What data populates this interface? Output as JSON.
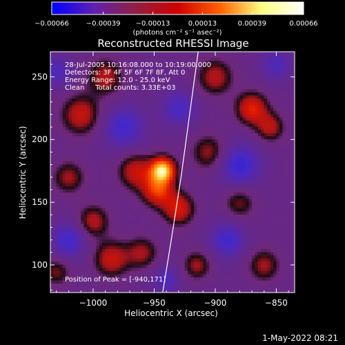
{
  "chart_data": {
    "type": "heatmap",
    "title": "Reconstructed RHESSI Image",
    "xlabel": "Heliocentric X (arcsec)",
    "ylabel": "Heliocentric Y (arcsec)",
    "xlim": [
      -1035,
      -835
    ],
    "ylim": [
      78,
      270
    ],
    "x_ticks": [
      -1000,
      -950,
      -900,
      -850
    ],
    "x_tick_labels": [
      "−1000",
      "−950",
      "−900",
      "−850"
    ],
    "y_ticks": [
      100,
      150,
      200,
      250
    ],
    "y_tick_labels": [
      "100",
      "150",
      "200",
      "250"
    ],
    "colorbar": {
      "range": [
        -0.00066,
        0.00066
      ],
      "ticks": [
        -0.00066,
        -0.00039,
        -0.00013,
        0.00013,
        0.00039,
        0.00066
      ],
      "tick_labels": [
        "−0.00066",
        "−0.00039",
        "−0.00013",
        "0.00013",
        "0.00039",
        "0.00066"
      ],
      "units": "(photons cm⁻² s⁻¹ asec⁻²)",
      "colors": [
        "#0000ff",
        "#6020b0",
        "#902040",
        "#d00000",
        "#ff6000",
        "#ffff80",
        "#ffffff"
      ]
    },
    "annotations": [
      "28-Jul-2005 10:16:08.000 to 10:19:00.000",
      "Detectors: 3F 4F 5F 6F 7F 8F, Att 0",
      "Energy Range: 12.0 - 25.0 keV",
      "Clean     Total counts: 3.33E+03"
    ],
    "peak_label": "Position of Peak = [-940,171]",
    "peak": {
      "x": -940,
      "y": 171
    },
    "grid": false,
    "sources": [
      {
        "x": -943,
        "y": 176,
        "intensity": 1.0,
        "sigma": 7
      },
      {
        "x": -947,
        "y": 160,
        "intensity": 0.6,
        "sigma": 9
      },
      {
        "x": -965,
        "y": 175,
        "intensity": 0.45,
        "sigma": 10
      },
      {
        "x": -930,
        "y": 145,
        "intensity": 0.5,
        "sigma": 9
      },
      {
        "x": -1010,
        "y": 220,
        "intensity": 0.45,
        "sigma": 11
      },
      {
        "x": -990,
        "y": 250,
        "intensity": 0.4,
        "sigma": 10
      },
      {
        "x": -1020,
        "y": 170,
        "intensity": 0.35,
        "sigma": 9
      },
      {
        "x": -1000,
        "y": 135,
        "intensity": 0.4,
        "sigma": 9
      },
      {
        "x": -985,
        "y": 105,
        "intensity": 0.45,
        "sigma": 10
      },
      {
        "x": -960,
        "y": 110,
        "intensity": 0.35,
        "sigma": 9
      },
      {
        "x": -900,
        "y": 250,
        "intensity": 0.4,
        "sigma": 10
      },
      {
        "x": -870,
        "y": 225,
        "intensity": 0.55,
        "sigma": 9
      },
      {
        "x": -855,
        "y": 210,
        "intensity": 0.4,
        "sigma": 8
      },
      {
        "x": -905,
        "y": 190,
        "intensity": 0.35,
        "sigma": 10
      },
      {
        "x": -880,
        "y": 150,
        "intensity": 0.3,
        "sigma": 9
      },
      {
        "x": -860,
        "y": 100,
        "intensity": 0.35,
        "sigma": 9
      },
      {
        "x": -915,
        "y": 100,
        "intensity": 0.35,
        "sigma": 8
      },
      {
        "x": -1030,
        "y": 95,
        "intensity": 0.3,
        "sigma": 8
      },
      {
        "x": -975,
        "y": 210,
        "intensity": -0.4,
        "sigma": 12
      },
      {
        "x": -1020,
        "y": 120,
        "intensity": -0.4,
        "sigma": 10
      },
      {
        "x": -880,
        "y": 180,
        "intensity": -0.45,
        "sigma": 12
      },
      {
        "x": -930,
        "y": 225,
        "intensity": -0.35,
        "sigma": 10
      },
      {
        "x": -890,
        "y": 120,
        "intensity": -0.4,
        "sigma": 10
      },
      {
        "x": -850,
        "y": 260,
        "intensity": -0.3,
        "sigma": 9
      },
      {
        "x": -1030,
        "y": 255,
        "intensity": -0.3,
        "sigma": 9
      },
      {
        "x": -940,
        "y": 88,
        "intensity": -0.3,
        "sigma": 8
      }
    ],
    "limb_curve": [
      [
        -943,
        78
      ],
      [
        -936,
        120
      ],
      [
        -928,
        170
      ],
      [
        -921,
        220
      ],
      [
        -914,
        270
      ]
    ]
  },
  "footer": {
    "timestamp": "1-May-2022 08:21"
  }
}
